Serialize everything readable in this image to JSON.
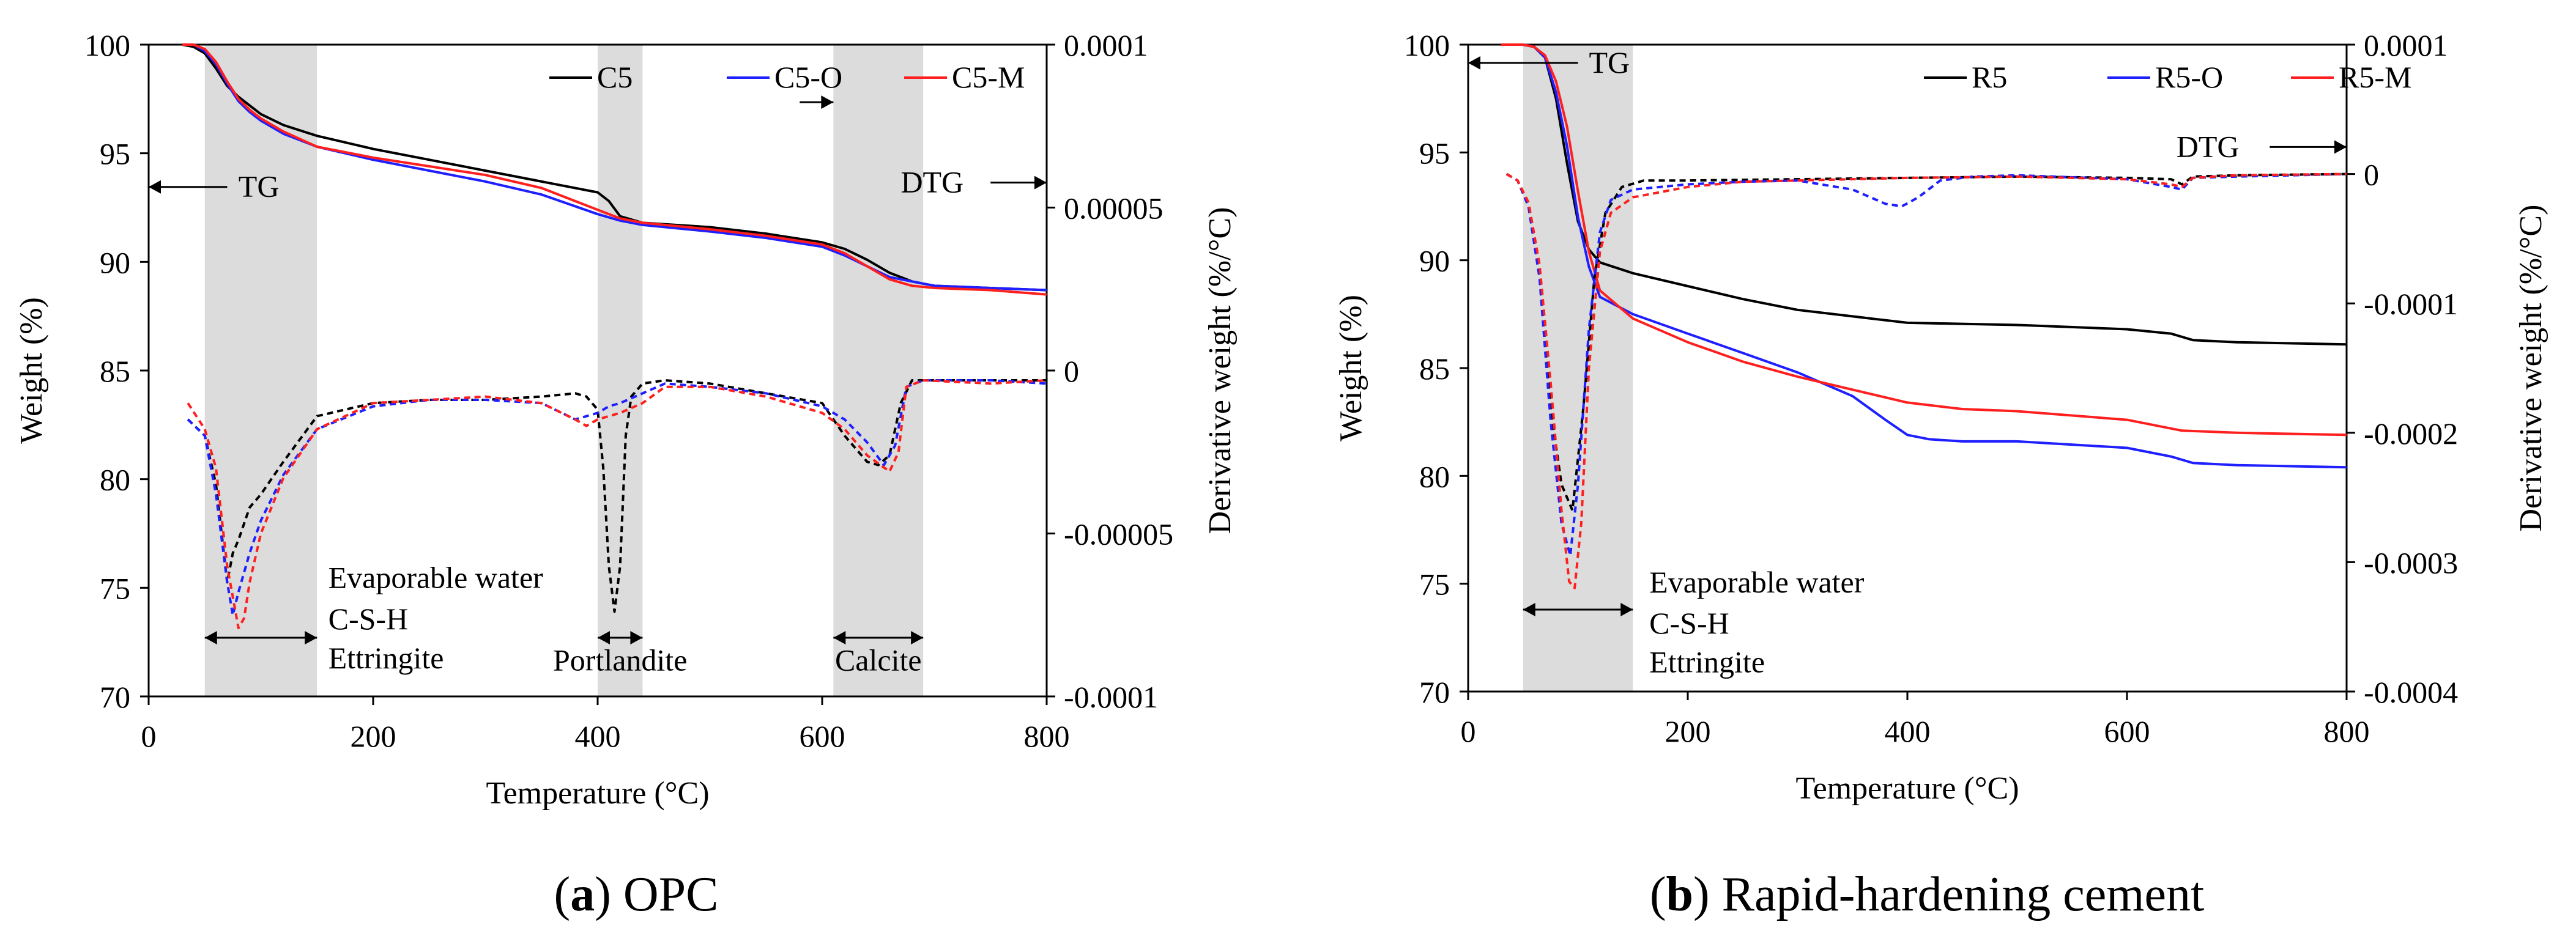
{
  "chart_data": [
    {
      "type": "line",
      "xlabel": "Temperature (°C)",
      "ylabel": "Weight (%)",
      "y2label": "Derivative weight (%/°C)",
      "xlim": [
        0,
        800
      ],
      "ylim": [
        70,
        100
      ],
      "y2lim": [
        -0.0001,
        0.0001
      ],
      "xticks": [
        0,
        200,
        400,
        600,
        800
      ],
      "xtick_labels": [
        "0",
        "200",
        "400",
        "600",
        "800"
      ],
      "yticks": [
        70,
        75,
        80,
        85,
        90,
        95,
        100
      ],
      "ytick_labels": [
        "70",
        "75",
        "80",
        "85",
        "90",
        "95",
        "100"
      ],
      "y2ticks": [
        -0.0001,
        -5e-05,
        0,
        5e-05,
        0.0001
      ],
      "y2tick_labels": [
        "-0.0001",
        "-0.00005",
        "0",
        "0.00005",
        "0.0001"
      ],
      "legend": [
        "C5",
        "C5-O",
        "C5-M"
      ],
      "legend_position": "top-right",
      "shaded_ranges": [
        [
          50,
          150
        ],
        [
          400,
          440
        ],
        [
          610,
          690
        ]
      ],
      "annotations": [
        {
          "text": "TG",
          "x": 80,
          "y": 93,
          "arrow": "left",
          "arrow_from": 70,
          "arrow_to": 0
        },
        {
          "text": "DTG",
          "x": 670,
          "y": 93.2,
          "arrow": "right",
          "arrow_from": 750,
          "arrow_to": 800
        },
        {
          "text": "",
          "x": 0,
          "y": 0,
          "arrow": "right",
          "arrow_from": 580,
          "arrow_to": 610,
          "arrow_y": 96.9
        },
        {
          "text": "Evaporable water",
          "x": 160,
          "y": 75
        },
        {
          "text": "C-S-H",
          "x": 160,
          "y": 73.1
        },
        {
          "text": "Ettringite",
          "x": 160,
          "y": 71.3
        },
        {
          "text": "Portlandite",
          "x": 420,
          "y": 71.2,
          "anchor": "middle"
        },
        {
          "text": "Calcite",
          "x": 650,
          "y": 71.2,
          "anchor": "middle"
        }
      ],
      "range_arrows": [
        [
          50,
          150,
          72.7
        ],
        [
          400,
          440,
          72.7
        ],
        [
          610,
          690,
          72.7
        ]
      ],
      "series": [
        {
          "name": "C5",
          "color": "#000000",
          "axis": "left",
          "dash": false,
          "x": [
            30,
            40,
            50,
            60,
            70,
            80,
            90,
            100,
            120,
            150,
            200,
            250,
            300,
            350,
            400,
            410,
            420,
            440,
            500,
            550,
            600,
            620,
            640,
            660,
            680,
            700,
            750,
            800
          ],
          "y": [
            100,
            99.9,
            99.6,
            98.9,
            98.1,
            97.6,
            97.2,
            96.8,
            96.3,
            95.8,
            95.2,
            94.7,
            94.2,
            93.7,
            93.2,
            92.8,
            92.1,
            91.8,
            91.6,
            91.3,
            90.9,
            90.6,
            90.1,
            89.5,
            89.1,
            88.9,
            88.8,
            88.7
          ]
        },
        {
          "name": "C5-O",
          "color": "#1f1fff",
          "axis": "left",
          "dash": false,
          "x": [
            30,
            40,
            50,
            60,
            70,
            80,
            90,
            100,
            120,
            150,
            200,
            250,
            300,
            350,
            400,
            420,
            440,
            500,
            550,
            600,
            620,
            640,
            660,
            680,
            700,
            750,
            800
          ],
          "y": [
            100,
            100,
            99.7,
            99.1,
            98.2,
            97.4,
            96.9,
            96.5,
            95.9,
            95.3,
            94.7,
            94.2,
            93.7,
            93.1,
            92.2,
            91.9,
            91.7,
            91.4,
            91.1,
            90.7,
            90.3,
            89.8,
            89.3,
            89.1,
            88.9,
            88.8,
            88.7
          ]
        },
        {
          "name": "C5-M",
          "color": "#ff1f1f",
          "axis": "left",
          "dash": false,
          "x": [
            30,
            40,
            50,
            60,
            70,
            80,
            90,
            100,
            120,
            150,
            200,
            250,
            300,
            350,
            400,
            420,
            440,
            500,
            550,
            600,
            620,
            640,
            660,
            680,
            700,
            750,
            800
          ],
          "y": [
            100,
            100,
            99.8,
            99.2,
            98.3,
            97.5,
            97.0,
            96.6,
            96.0,
            95.3,
            94.8,
            94.4,
            94.0,
            93.4,
            92.4,
            92.0,
            91.8,
            91.5,
            91.2,
            90.8,
            90.4,
            89.8,
            89.2,
            88.9,
            88.8,
            88.7,
            88.5
          ]
        },
        {
          "name": "C5 DTG",
          "color": "#000000",
          "axis": "right",
          "dash": true,
          "x": [
            35,
            50,
            60,
            70,
            75,
            80,
            90,
            100,
            120,
            150,
            200,
            250,
            300,
            350,
            380,
            390,
            400,
            405,
            410,
            415,
            420,
            425,
            430,
            440,
            460,
            500,
            550,
            600,
            620,
            640,
            650,
            660,
            670,
            680,
            700,
            750,
            800
          ],
          "y": [
            -1.5e-05,
            -2e-05,
            -3.5e-05,
            -6.5e-05,
            -5.6e-05,
            -5.2e-05,
            -4.2e-05,
            -3.8e-05,
            -2.8e-05,
            -1.4e-05,
            -1e-05,
            -9e-06,
            -9e-06,
            -8e-06,
            -7e-06,
            -8e-06,
            -1.2e-05,
            -3e-05,
            -6e-05,
            -7.4e-05,
            -6e-05,
            -2e-05,
            -8e-06,
            -4e-06,
            -3e-06,
            -4e-06,
            -7e-06,
            -1e-05,
            -2e-05,
            -2.8e-05,
            -2.9e-05,
            -2.6e-05,
            -1e-05,
            -3e-06,
            -3e-06,
            -3e-06,
            -3e-06
          ]
        },
        {
          "name": "C5-O DTG",
          "color": "#1f1fff",
          "axis": "right",
          "dash": true,
          "x": [
            35,
            50,
            60,
            70,
            75,
            80,
            90,
            100,
            120,
            150,
            200,
            250,
            300,
            350,
            380,
            400,
            410,
            420,
            440,
            460,
            500,
            550,
            600,
            620,
            640,
            655,
            665,
            675,
            690,
            750,
            800
          ],
          "y": [
            -1.5e-05,
            -2e-05,
            -3.8e-05,
            -6.5e-05,
            -7.5e-05,
            -6.8e-05,
            -5.6e-05,
            -4.6e-05,
            -3.2e-05,
            -1.8e-05,
            -1.1e-05,
            -9e-06,
            -9e-06,
            -1e-05,
            -1.5e-05,
            -1.3e-05,
            -1.1e-05,
            -1e-05,
            -7e-06,
            -4e-06,
            -5e-06,
            -7e-06,
            -1.1e-05,
            -1.5e-05,
            -2.2e-05,
            -2.9e-05,
            -2.3e-05,
            -5e-06,
            -3e-06,
            -3e-06,
            -4e-06
          ]
        },
        {
          "name": "C5-M DTG",
          "color": "#ff1f1f",
          "axis": "right",
          "dash": true,
          "x": [
            35,
            50,
            60,
            70,
            80,
            85,
            90,
            100,
            120,
            150,
            200,
            250,
            300,
            350,
            380,
            390,
            400,
            420,
            440,
            460,
            500,
            550,
            600,
            620,
            640,
            660,
            668,
            675,
            690,
            750,
            800
          ],
          "y": [
            -1e-05,
            -1.8e-05,
            -3e-05,
            -6e-05,
            -7.9e-05,
            -7.6e-05,
            -6.5e-05,
            -5e-05,
            -3.3e-05,
            -1.8e-05,
            -1e-05,
            -9e-06,
            -8e-06,
            -1e-05,
            -1.5e-05,
            -1.7e-05,
            -1.5e-05,
            -1.3e-05,
            -1e-05,
            -5e-06,
            -5e-06,
            -8e-06,
            -1.3e-05,
            -1.8e-05,
            -2.6e-05,
            -3.1e-05,
            -2.5e-05,
            -5e-06,
            -3e-06,
            -4e-06,
            -3e-06
          ]
        }
      ]
    },
    {
      "type": "line",
      "xlabel": "Temperature (°C)",
      "ylabel": "Weight (%)",
      "y2label": "Derivative weight (%/°C)",
      "xlim": [
        0,
        800
      ],
      "ylim": [
        70,
        100
      ],
      "y2lim": [
        -0.0004,
        0.0001
      ],
      "xticks": [
        0,
        200,
        400,
        600,
        800
      ],
      "xtick_labels": [
        "0",
        "200",
        "400",
        "600",
        "800"
      ],
      "yticks": [
        70,
        75,
        80,
        85,
        90,
        95,
        100
      ],
      "ytick_labels": [
        "70",
        "75",
        "80",
        "85",
        "90",
        "95",
        "100"
      ],
      "y2ticks": [
        -0.0004,
        -0.0003,
        -0.0002,
        -0.0001,
        0,
        0.0001
      ],
      "y2tick_labels": [
        "-0.0004",
        "-0.0003",
        "-0.0002",
        "-0.0001",
        "0",
        "0.0001"
      ],
      "legend": [
        "R5",
        "R5-O",
        "R5-M"
      ],
      "legend_position": "top-right",
      "shaded_ranges": [
        [
          50,
          150
        ]
      ],
      "annotations": [
        {
          "text": "TG",
          "x": 110,
          "y": 98.7,
          "arrow": "left",
          "arrow_from": 100,
          "arrow_to": 0
        },
        {
          "text": "DTG",
          "x": 645,
          "y": 94.8,
          "arrow": "right",
          "arrow_from": 730,
          "arrow_to": 800
        },
        {
          "text": "Evaporable water",
          "x": 165,
          "y": 74.6
        },
        {
          "text": "C-S-H",
          "x": 165,
          "y": 72.7
        },
        {
          "text": "Ettringite",
          "x": 165,
          "y": 70.9
        }
      ],
      "range_arrows": [
        [
          50,
          150,
          73.8
        ]
      ],
      "series": [
        {
          "name": "R5",
          "color": "#000000",
          "axis": "left",
          "dash": false,
          "x": [
            30,
            50,
            60,
            70,
            80,
            90,
            100,
            110,
            120,
            150,
            200,
            250,
            300,
            350,
            400,
            500,
            600,
            640,
            660,
            700,
            800
          ],
          "y": [
            100,
            100,
            99.9,
            99.4,
            97.5,
            94.5,
            91.8,
            90.5,
            89.9,
            89.4,
            88.8,
            88.2,
            87.7,
            87.4,
            87.1,
            87.0,
            86.8,
            86.6,
            86.3,
            86.2,
            86.1
          ]
        },
        {
          "name": "R5-O",
          "color": "#1f1fff",
          "axis": "left",
          "dash": false,
          "x": [
            30,
            50,
            60,
            70,
            80,
            90,
            100,
            110,
            120,
            150,
            200,
            250,
            300,
            350,
            380,
            400,
            420,
            450,
            500,
            600,
            640,
            660,
            700,
            800
          ],
          "y": [
            100,
            100,
            99.9,
            99.4,
            97.8,
            95.3,
            92.0,
            89.7,
            88.3,
            87.5,
            86.6,
            85.7,
            84.8,
            83.7,
            82.6,
            81.9,
            81.7,
            81.6,
            81.6,
            81.3,
            80.9,
            80.6,
            80.5,
            80.4
          ]
        },
        {
          "name": "R5-M",
          "color": "#ff1f1f",
          "axis": "left",
          "dash": false,
          "x": [
            30,
            50,
            60,
            70,
            80,
            90,
            100,
            110,
            120,
            150,
            200,
            250,
            300,
            350,
            400,
            450,
            500,
            600,
            650,
            700,
            800
          ],
          "y": [
            100,
            100,
            99.9,
            99.5,
            98.3,
            96.2,
            93.2,
            90.4,
            88.6,
            87.3,
            86.2,
            85.3,
            84.6,
            84.0,
            83.4,
            83.1,
            83.0,
            82.6,
            82.1,
            82.0,
            81.9
          ]
        },
        {
          "name": "R5 DTG",
          "color": "#000000",
          "axis": "right",
          "dash": true,
          "x": [
            35,
            45,
            55,
            65,
            75,
            85,
            95,
            105,
            115,
            125,
            140,
            160,
            200,
            300,
            400,
            500,
            600,
            640,
            650,
            660,
            700,
            800
          ],
          "y": [
            0,
            -5e-06,
            -2.5e-05,
            -8e-05,
            -0.00018,
            -0.00024,
            -0.00026,
            -0.00018,
            -8e-05,
            -3e-05,
            -1e-05,
            -5e-06,
            -5e-06,
            -4e-06,
            -3e-06,
            -2e-06,
            -3e-06,
            -4e-06,
            -8e-06,
            -2e-06,
            -1e-06,
            0
          ]
        },
        {
          "name": "R5-O DTG",
          "color": "#1f1fff",
          "axis": "right",
          "dash": true,
          "x": [
            35,
            45,
            55,
            65,
            75,
            85,
            93,
            100,
            110,
            120,
            130,
            150,
            200,
            250,
            300,
            350,
            380,
            395,
            410,
            430,
            460,
            500,
            600,
            640,
            650,
            660,
            700,
            800
          ],
          "y": [
            0,
            -5e-06,
            -2.5e-05,
            -8e-05,
            -0.00019,
            -0.00027,
            -0.000295,
            -0.00024,
            -0.00012,
            -4.5e-05,
            -2e-05,
            -1.2e-05,
            -8e-06,
            -6e-06,
            -5e-06,
            -1.2e-05,
            -2.3e-05,
            -2.5e-05,
            -1.8e-05,
            -5e-06,
            -2e-06,
            -1e-06,
            -4e-06,
            -1e-05,
            -1.2e-05,
            -3e-06,
            -2e-06,
            0
          ]
        },
        {
          "name": "R5-M DTG",
          "color": "#ff1f1f",
          "axis": "right",
          "dash": true,
          "x": [
            35,
            45,
            55,
            65,
            75,
            85,
            92,
            97,
            103,
            110,
            120,
            130,
            150,
            200,
            250,
            300,
            400,
            500,
            600,
            640,
            650,
            660,
            700,
            800
          ],
          "y": [
            0,
            -5e-06,
            -2.2e-05,
            -7e-05,
            -0.00016,
            -0.00026,
            -0.000315,
            -0.00032,
            -0.00027,
            -0.00015,
            -6e-05,
            -3e-05,
            -1.8e-05,
            -1e-05,
            -6e-06,
            -5e-06,
            -3e-06,
            -2e-06,
            -4e-06,
            -8e-06,
            -1e-05,
            -3e-06,
            -1e-06,
            0
          ]
        }
      ]
    }
  ],
  "captions": {
    "a": {
      "label": "a",
      "text": "OPC"
    },
    "b": {
      "label": "b",
      "text": "Rapid-hardening cement"
    }
  }
}
